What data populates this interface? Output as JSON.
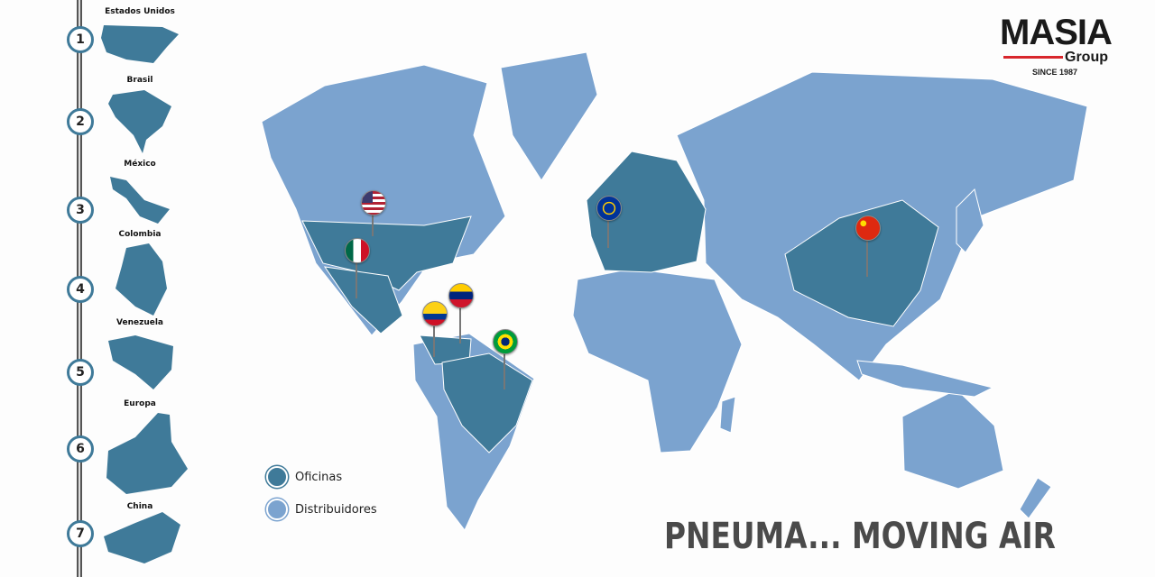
{
  "logo": {
    "name": "MASIA",
    "sub": "Group",
    "since": "SINCE 1987"
  },
  "sidebar": {
    "items": [
      {
        "number": "1",
        "label": "Estados Unidos"
      },
      {
        "number": "2",
        "label": "Brasil"
      },
      {
        "number": "3",
        "label": "México"
      },
      {
        "number": "4",
        "label": "Colombia"
      },
      {
        "number": "5",
        "label": "Venezuela"
      },
      {
        "number": "6",
        "label": "Europa"
      },
      {
        "number": "7",
        "label": "China"
      }
    ]
  },
  "legend": {
    "offices": {
      "label": "Oficinas",
      "color": "#3f7a99"
    },
    "distributors": {
      "label": "Distribuidores",
      "color": "#7ba3cf"
    }
  },
  "map": {
    "office_color": "#3f7a99",
    "distributor_color": "#7ba3cf",
    "pins": [
      "usa-flag",
      "mexico-flag",
      "colombia-flag",
      "venezuela-flag",
      "brazil-flag",
      "eu-flag",
      "china-flag"
    ]
  },
  "tagline": "PNEUMA... MOVING AIR"
}
